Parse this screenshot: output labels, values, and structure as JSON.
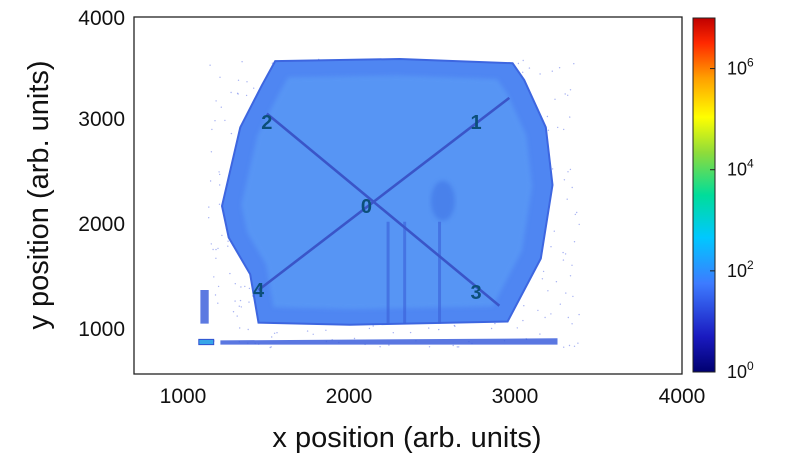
{
  "chart_data": {
    "type": "heatmap",
    "xlabel": "x position (arb. units)",
    "ylabel": "y position (arb. units)",
    "xlim": [
      700,
      4000
    ],
    "ylim": [
      600,
      4000
    ],
    "x_ticks": [
      "1000",
      "2000",
      "3000",
      "4000"
    ],
    "y_ticks": [
      "1000",
      "2000",
      "3000",
      "4000"
    ],
    "colorbar": {
      "scale": "log",
      "range": [
        1,
        10000000
      ],
      "tick_base": "10",
      "tick_exponents": [
        "0",
        "2",
        "4",
        "6"
      ],
      "colormap": [
        "#000080",
        "#1414c8",
        "#3c78ff",
        "#00c8ff",
        "#00e0a0",
        "#80e040",
        "#ffff00",
        "#ffa000",
        "#ff3000",
        "#c00000"
      ]
    },
    "points": [
      {
        "label": "0",
        "x": 2100,
        "y": 2200
      },
      {
        "label": "1",
        "x": 2760,
        "y": 3000
      },
      {
        "label": "2",
        "x": 1500,
        "y": 3000
      },
      {
        "label": "3",
        "x": 2760,
        "y": 1380
      },
      {
        "label": "4",
        "x": 1450,
        "y": 1400
      }
    ],
    "regions": {
      "main_body": [
        [
          1550,
          3580
        ],
        [
          2300,
          3600
        ],
        [
          2980,
          3560
        ],
        [
          3050,
          3400
        ],
        [
          3180,
          2950
        ],
        [
          3220,
          2400
        ],
        [
          3150,
          1700
        ],
        [
          2950,
          1100
        ],
        [
          2000,
          1070
        ],
        [
          1450,
          1090
        ],
        [
          1400,
          1550
        ],
        [
          1270,
          1900
        ],
        [
          1230,
          2200
        ],
        [
          1340,
          2950
        ],
        [
          1470,
          3350
        ],
        [
          1550,
          3580
        ]
      ],
      "bottom_streak": [
        [
          1220,
          920
        ],
        [
          3250,
          940
        ],
        [
          3250,
          880
        ],
        [
          1220,
          880
        ]
      ],
      "left_spot": [
        [
          1090,
          930
        ],
        [
          1180,
          930
        ],
        [
          1180,
          880
        ],
        [
          1090,
          880
        ]
      ],
      "left_bar": [
        [
          1100,
          1400
        ],
        [
          1150,
          1400
        ],
        [
          1150,
          1080
        ],
        [
          1100,
          1080
        ]
      ],
      "diagonals": [
        [
          [
            1450,
            1400
          ],
          [
            2960,
            3230
          ]
        ],
        [
          [
            1500,
            3080
          ],
          [
            2900,
            1250
          ]
        ]
      ],
      "vertical_streaks": [
        2230,
        2330,
        2540
      ]
    }
  }
}
